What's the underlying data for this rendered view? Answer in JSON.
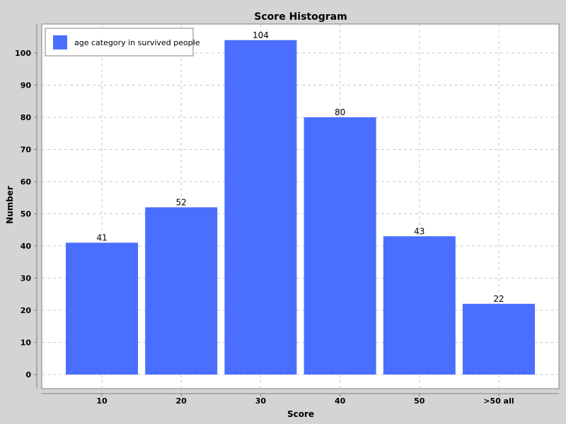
{
  "colors": {
    "background": "#d4d4d4",
    "plot_background": "#ffffff",
    "bar": "#4a6fff",
    "grid": "#c8c8c8",
    "axis": "#808080"
  },
  "chart_data": {
    "type": "bar",
    "title": "Score Histogram",
    "xlabel": "Score",
    "ylabel": "Number",
    "categories": [
      "10",
      "20",
      "30",
      "40",
      "50",
      ">50 all"
    ],
    "series": [
      {
        "name": "age category in survived people",
        "values": [
          41,
          52,
          104,
          80,
          43,
          22
        ]
      }
    ],
    "ylim": [
      0,
      109
    ],
    "yticks": [
      0,
      10,
      20,
      30,
      40,
      50,
      60,
      70,
      80,
      90,
      100
    ],
    "grid": true,
    "legend": "top-left",
    "data_labels": true
  }
}
